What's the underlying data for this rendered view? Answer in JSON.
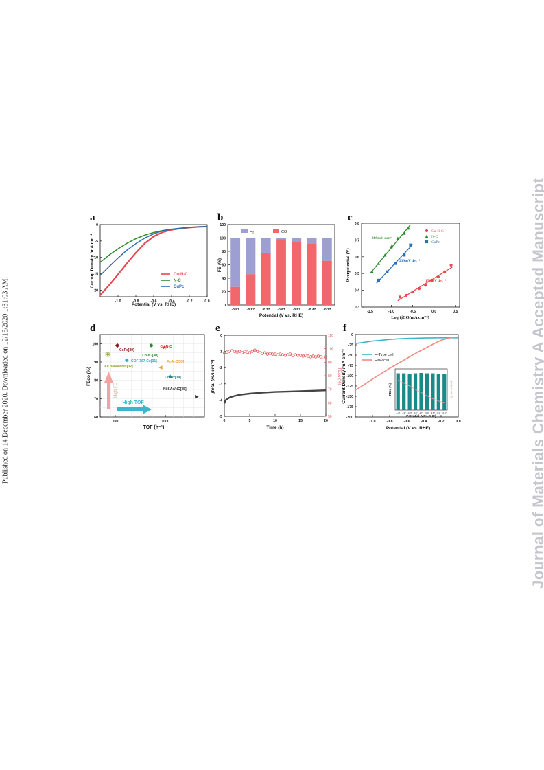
{
  "page": {
    "left_note": "Published on 14 December 2020. Downloaded on 12/15/2020 1:31:03 AM.",
    "watermark": "Journal of Materials Chemistry A Accepted Manuscript"
  },
  "chart_data": [
    {
      "panel": "a",
      "type": "line",
      "xlabel": "Potential (V vs. RHE)",
      "ylabel": "Current Density /mA cm⁻²",
      "xlim": [
        -1.2,
        0.0
      ],
      "ylim": [
        -22,
        0
      ],
      "xticks": [
        "-1.0",
        "-0.8",
        "-0.6",
        "-0.4",
        "-0.2",
        "0.0"
      ],
      "yticks": [
        "0",
        "-5",
        "-10",
        "-15",
        "-20"
      ],
      "legend_position": "bottom-right",
      "series": [
        {
          "name": "Cu-N-C",
          "color": "#e8474f",
          "x": [
            -1.2,
            -1.1,
            -1.0,
            -0.9,
            -0.8,
            -0.7,
            -0.6,
            -0.5,
            -0.4,
            -0.3,
            -0.2,
            -0.1,
            0.0
          ],
          "y": [
            -21.5,
            -18.5,
            -15.2,
            -11.8,
            -8.6,
            -5.7,
            -3.6,
            -2.3,
            -1.6,
            -1.2,
            -0.9,
            -0.7,
            -0.6
          ]
        },
        {
          "name": "N-C",
          "color": "#2e8b2e",
          "x": [
            -1.2,
            -1.1,
            -1.0,
            -0.9,
            -0.8,
            -0.7,
            -0.6,
            -0.5,
            -0.4,
            -0.3,
            -0.2,
            -0.1,
            0.0
          ],
          "y": [
            -11.5,
            -9.3,
            -7.4,
            -5.7,
            -4.3,
            -3.2,
            -2.4,
            -1.8,
            -1.4,
            -1.1,
            -0.9,
            -0.7,
            -0.6
          ]
        },
        {
          "name": "CuPc",
          "color": "#2b6fb5",
          "x": [
            -1.2,
            -1.1,
            -1.0,
            -0.9,
            -0.8,
            -0.7,
            -0.6,
            -0.5,
            -0.4,
            -0.3,
            -0.2,
            -0.1,
            0.0
          ],
          "y": [
            -15.5,
            -12.8,
            -10.2,
            -7.8,
            -5.8,
            -4.1,
            -2.8,
            -1.9,
            -1.4,
            -1.1,
            -0.9,
            -0.7,
            -0.6
          ]
        }
      ]
    },
    {
      "panel": "b",
      "type": "bar",
      "xlabel": "Potential (V vs. RHE)",
      "ylabel": "FE (%)",
      "ylim": [
        0,
        120
      ],
      "yticks": [
        "0",
        "20",
        "40",
        "60",
        "80",
        "100",
        "120"
      ],
      "categories": [
        "-0.97",
        "-0.87",
        "-0.77",
        "-0.67",
        "-0.57",
        "-0.47",
        "-0.37"
      ],
      "legend_position": "top",
      "series": [
        {
          "name": "CO",
          "color": "#f2676b",
          "values": [
            27,
            46,
            78,
            98,
            95,
            92,
            66
          ]
        },
        {
          "name": "H₂",
          "color": "#9d9fd2",
          "values": [
            73,
            54,
            22,
            2,
            5,
            8,
            34
          ]
        }
      ]
    },
    {
      "panel": "c",
      "type": "scatter",
      "xlabel": "Log (jCO/mA cm⁻²)",
      "ylabel": "Overpotential (V)",
      "xlim": [
        -1.7,
        0.6
      ],
      "ylim": [
        0.3,
        0.8
      ],
      "xticks": [
        "-1.5",
        "-1.0",
        "-0.5",
        "0.0",
        "0.5"
      ],
      "yticks": [
        "0.3",
        "0.4",
        "0.5",
        "0.6",
        "0.7",
        "0.8"
      ],
      "legend_position": "top-right",
      "series": [
        {
          "name": "Cu-N-C",
          "color": "#e8474f",
          "marker": "circle",
          "slope_label": "156mV dec⁻¹",
          "x": [
            -0.8,
            -0.65,
            -0.5,
            -0.35,
            -0.2,
            -0.05,
            0.1,
            0.25,
            0.4
          ],
          "y": [
            0.36,
            0.37,
            0.39,
            0.41,
            0.43,
            0.46,
            0.48,
            0.51,
            0.55
          ]
        },
        {
          "name": "N-C",
          "color": "#2e8b2e",
          "marker": "triangle",
          "slope_label": "309mV dec⁻¹",
          "x": [
            -1.45,
            -1.3,
            -1.15,
            -1.0,
            -0.85,
            -0.7,
            -0.6
          ],
          "y": [
            0.51,
            0.56,
            0.61,
            0.66,
            0.71,
            0.74,
            0.77
          ]
        },
        {
          "name": "CuPc",
          "color": "#2b6fb5",
          "marker": "square",
          "slope_label": "239mV dec⁻¹",
          "x": [
            -1.3,
            -1.1,
            -0.9,
            -0.7,
            -0.55
          ],
          "y": [
            0.46,
            0.51,
            0.56,
            0.61,
            0.67
          ]
        }
      ]
    },
    {
      "panel": "d",
      "type": "scatter",
      "xlabel": "TOF (h⁻¹)",
      "ylabel": "FEco (%)",
      "xscale": "log",
      "xlim": [
        50,
        6000
      ],
      "ylim": [
        60,
        105
      ],
      "xticks": [
        "100",
        "1000"
      ],
      "yticks": [
        "60",
        "70",
        "80",
        "90",
        "100"
      ],
      "annotations": [
        "High FE",
        "High TOF"
      ],
      "points": [
        {
          "label": "CoPc",
          "ref": "[29]",
          "x": 110,
          "y": 99,
          "color": "#8b1a1a",
          "marker": "diamond"
        },
        {
          "label": "Cu-N-C",
          "ref": "",
          "x": 950,
          "y": 98,
          "color": "#e03030",
          "marker": "star"
        },
        {
          "label": "Co-N₄",
          "ref": "[30]",
          "x": 520,
          "y": 99,
          "color": "#2e8b2e",
          "marker": "circle"
        },
        {
          "label": "COF-367-Co",
          "ref": "[31]",
          "x": 170,
          "y": 91,
          "color": "#2ab0c8",
          "marker": "circle"
        },
        {
          "label": "Au nanowires",
          "ref": "[32]",
          "x": 70,
          "y": 94,
          "color": "#8aa020",
          "marker": "asterisk"
        },
        {
          "label": "Fe-N-C",
          "ref": "[33]",
          "x": 800,
          "y": 87,
          "color": "#f0a020",
          "marker": "triangle-left"
        },
        {
          "label": "Co-Nx",
          "ref": "[34]",
          "x": 1250,
          "y": 82,
          "color": "#2a7f7f",
          "marker": "triangle-up"
        },
        {
          "label": "Ni SAs/NC",
          "ref": "[35]",
          "x": 4200,
          "y": 71,
          "color": "#333333",
          "marker": "triangle-right"
        }
      ]
    },
    {
      "panel": "e",
      "type": "line",
      "xlabel": "Time (h)",
      "ylabel": "jtotal (mA cm⁻²)",
      "y2label": "FEco (%)",
      "xlim": [
        0,
        20
      ],
      "ylim": [
        -5,
        0
      ],
      "y2lim": [
        50,
        110
      ],
      "xticks": [
        "0",
        "5",
        "10",
        "15",
        "20"
      ],
      "yticks": [
        "0",
        "-1",
        "-2",
        "-3",
        "-4",
        "-5"
      ],
      "y2ticks": [
        "50",
        "60",
        "70",
        "80",
        "90",
        "100",
        "110"
      ],
      "series": [
        {
          "name": "j_total",
          "color": "#444444",
          "x": [
            0,
            0.3,
            1,
            2,
            3,
            5,
            7,
            10,
            13,
            16,
            20
          ],
          "y": [
            -4.2,
            -4.0,
            -3.85,
            -3.75,
            -3.68,
            -3.6,
            -3.55,
            -3.5,
            -3.47,
            -3.44,
            -3.4
          ]
        },
        {
          "name": "FEco",
          "color": "#e05050",
          "axis": "y2",
          "x": [
            0,
            0.5,
            1,
            1.5,
            2,
            2.5,
            3,
            3.5,
            4,
            4.5,
            5,
            5.5,
            6,
            6.5,
            7,
            7.5,
            8,
            8.5,
            9,
            9.5,
            10,
            10.5,
            11,
            11.5,
            12,
            12.5,
            13,
            13.5,
            14,
            14.5,
            15,
            15.5,
            16,
            16.5,
            17,
            17.5,
            18,
            18.5,
            19,
            19.5,
            20
          ],
          "y": [
            97,
            97.5,
            98,
            98.5,
            98,
            97.5,
            98,
            97,
            98,
            97.5,
            97,
            98,
            99,
            98,
            97,
            96.5,
            97,
            96,
            96.5,
            96,
            96,
            95.5,
            96,
            95.5,
            95,
            95.5,
            96,
            95,
            95.5,
            95,
            95,
            94.5,
            95,
            94.5,
            94,
            94.5,
            94,
            94.5,
            94,
            93.5,
            94
          ]
        }
      ]
    },
    {
      "panel": "f",
      "type": "line",
      "xlabel": "Potential (V vs. RHE)",
      "ylabel": "Current Density /mA cm⁻²",
      "xlim": [
        -1.2,
        0.0
      ],
      "ylim": [
        -200,
        0
      ],
      "xticks": [
        "-1.0",
        "-0.8",
        "-0.6",
        "-0.4",
        "-0.2",
        "0.0"
      ],
      "yticks": [
        "0",
        "-25",
        "-50",
        "-75",
        "-100",
        "-125",
        "-150",
        "-175",
        "-200"
      ],
      "legend_position": "top-left",
      "series": [
        {
          "name": "H-Type cell",
          "color": "#3bb8c8",
          "x": [
            -1.2,
            -1.1,
            -1.0,
            -0.9,
            -0.8,
            -0.7,
            -0.6,
            -0.5,
            -0.4,
            -0.3,
            -0.2,
            -0.1,
            0.0
          ],
          "y": [
            -22,
            -19,
            -16,
            -14,
            -12,
            -10.5,
            -9.5,
            -9,
            -8.5,
            -8.2,
            -8,
            -8,
            -8
          ]
        },
        {
          "name": "Flow cell",
          "color": "#f08a80",
          "x": [
            -1.2,
            -1.1,
            -1.0,
            -0.9,
            -0.8,
            -0.7,
            -0.6,
            -0.5,
            -0.4,
            -0.3,
            -0.2,
            -0.1,
            0.0
          ],
          "y": [
            -135,
            -122,
            -108,
            -95,
            -82,
            -70,
            -58,
            -46,
            -35,
            -24,
            -14,
            -8,
            -6
          ]
        }
      ],
      "inset": {
        "xlabel": "Potential (V vs.RHE)",
        "ylabel": "FEco (%)",
        "y2label": "jco (mA cm⁻²)",
        "categories": [
          "-1.17",
          "-1.07",
          "-0.97",
          "-0.87",
          "-0.77",
          "-0.67",
          "-0.57",
          "-0.47",
          "-0.37"
        ],
        "values": [
          98,
          98,
          97,
          98,
          99,
          98,
          98,
          97,
          97
        ],
        "bar_color": "#1a8a88"
      }
    }
  ]
}
